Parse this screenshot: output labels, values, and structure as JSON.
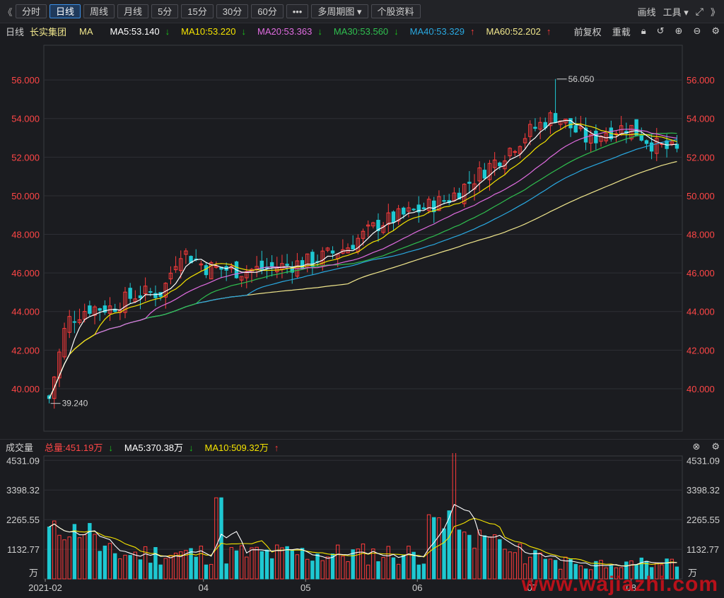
{
  "toolbar": {
    "collapse_left": "《",
    "tabs": [
      "分时",
      "日线",
      "周线",
      "月线",
      "5分",
      "15分",
      "30分",
      "60分"
    ],
    "active_tab": "日线",
    "more": "•••",
    "multi_period": "多周期图",
    "stock_info": "个股资料",
    "draw": "画线",
    "tools": "工具",
    "collapse_right": "》"
  },
  "info": {
    "period": "日线",
    "stock_name": "长实集团",
    "indicator": "MA",
    "ma5": {
      "label": "MA5:53.140",
      "dir": "down",
      "color": "#ffffff"
    },
    "ma10": {
      "label": "MA10:53.220",
      "dir": "down",
      "color": "#f5e400"
    },
    "ma20": {
      "label": "MA20:53.363",
      "dir": "down",
      "color": "#e06ce0"
    },
    "ma30": {
      "label": "MA30:53.560",
      "dir": "down",
      "color": "#2fbf4f"
    },
    "ma40": {
      "label": "MA40:53.329",
      "dir": "up",
      "color": "#29a8e0"
    },
    "ma60": {
      "label": "MA60:52.202",
      "dir": "up",
      "color": "#f0e68c"
    },
    "fq": "前复权",
    "overlay": "重载"
  },
  "volume_info": {
    "title": "成交量",
    "total": "总量:451.19万",
    "total_dir": "down",
    "ma5": "MA5:370.38万",
    "ma5_dir": "down",
    "ma10": "MA10:509.32万",
    "ma10_dir": "up",
    "unit": "万"
  },
  "colors": {
    "up": "#ff3b3b",
    "down": "#1ec8d2",
    "axis_text": "#ff4646",
    "vol_axis_text": "#cfcfcf"
  },
  "chart_data": {
    "type": "candlestick",
    "price_ticks": [
      40,
      42,
      44,
      46,
      48,
      50,
      52,
      54,
      56
    ],
    "price_tick_labels": [
      "40.000",
      "42.000",
      "44.000",
      "46.000",
      "48.000",
      "50.000",
      "52.000",
      "54.000",
      "56.000"
    ],
    "ylim": [
      37.8,
      57.8
    ],
    "high_annotation": "56.050",
    "high_value": 56.05,
    "low_annotation": "39.240",
    "low_value": 39.24,
    "x_tick_labels": [
      "2021-02",
      "04",
      "05",
      "06",
      "07",
      "08"
    ],
    "volume_ticks": [
      1132.77,
      2265.55,
      3398.32,
      4531.09
    ],
    "volume_tick_labels": [
      "1132.77",
      "2265.55",
      "3398.32",
      "4531.09"
    ],
    "volume_ylim": [
      0,
      4700
    ],
    "candle_count": 125
  }
}
